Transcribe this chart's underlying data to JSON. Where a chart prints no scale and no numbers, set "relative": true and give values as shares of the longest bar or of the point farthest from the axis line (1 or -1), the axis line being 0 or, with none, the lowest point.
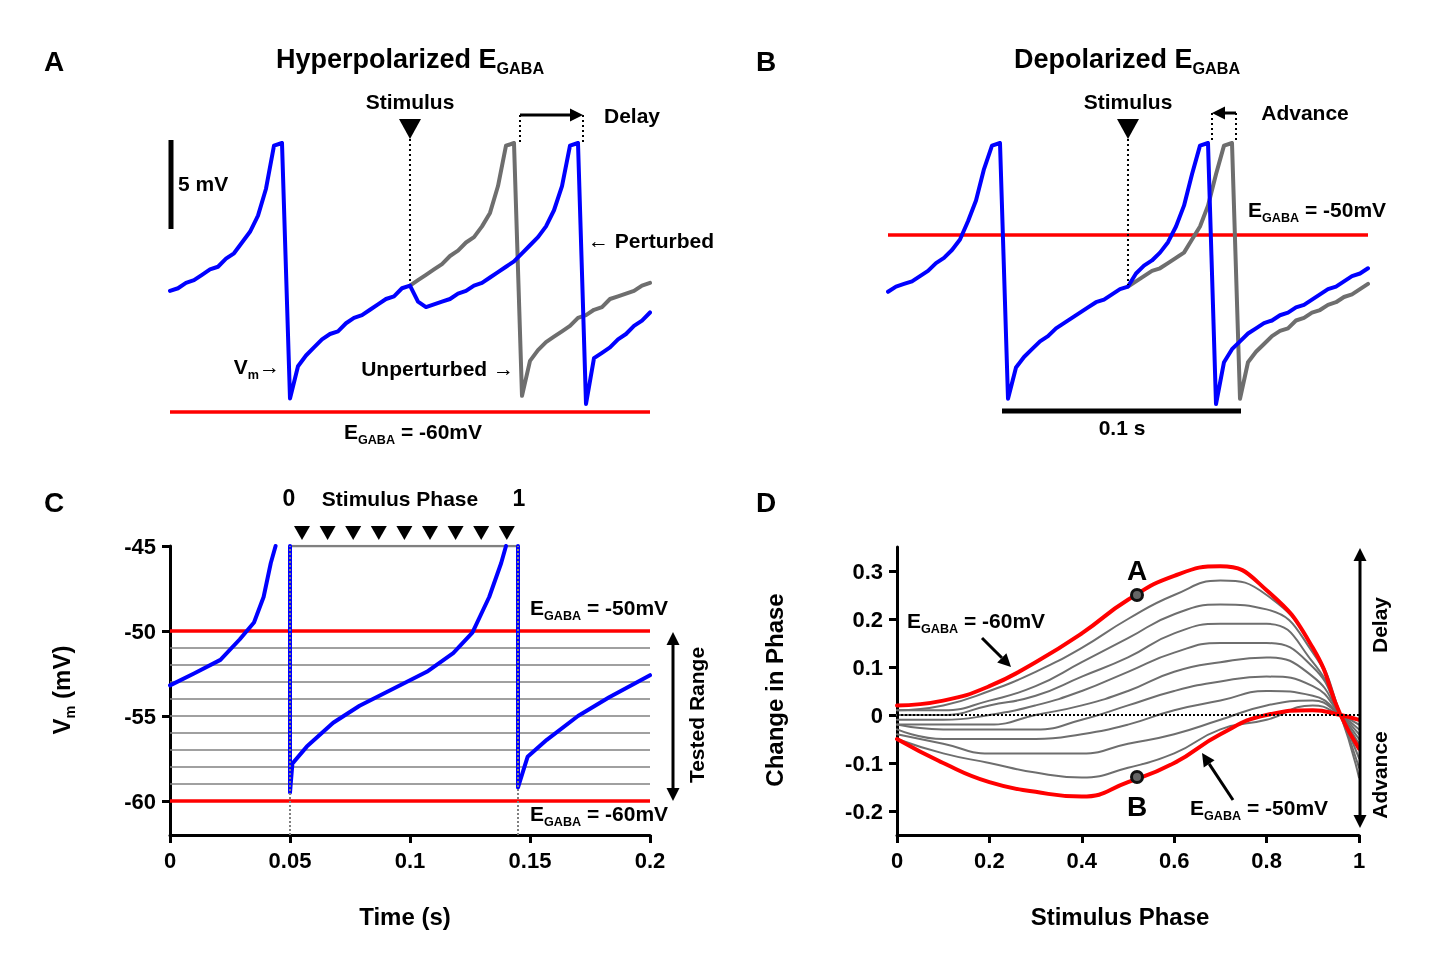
{
  "chart_data": [
    {
      "type": "line",
      "title": "Hyperpolarized E$_{GABA}$",
      "relative": true,
      "categories": [
        null,
        null,
        null,
        null,
        null,
        null,
        null,
        null,
        null,
        null,
        null,
        null,
        null,
        null,
        null,
        null,
        null,
        null,
        null,
        null,
        null,
        null,
        null,
        null,
        null,
        null,
        null,
        null,
        null,
        null,
        null,
        null,
        null,
        null,
        null,
        null,
        null,
        null,
        null,
        null,
        null,
        null,
        null,
        null,
        null,
        null,
        null,
        null,
        null,
        null,
        null,
        null,
        null,
        null,
        null,
        null,
        null,
        null,
        null,
        null,
        null
      ],
      "series": [
        {
          "color": "#6e6e6e",
          "values": [
            null,
            null,
            null,
            null,
            null,
            null,
            null,
            null,
            null,
            null,
            null,
            null,
            null,
            null,
            null,
            null,
            null,
            null,
            null,
            null,
            null,
            null,
            null,
            null,
            null,
            null,
            null,
            null,
            null,
            null,
            0.47,
            0.49,
            0.51,
            0.53,
            0.55,
            0.58,
            0.6,
            0.63,
            0.65,
            0.69,
            0.74,
            0.84,
            0.99,
            1,
            0.06,
            0.19,
            0.23,
            0.26,
            0.28,
            0.3,
            0.32,
            0.35,
            0.36,
            0.38,
            0.39,
            0.42,
            0.43,
            0.44,
            0.45,
            0.47,
            0.48
          ]
        },
        {
          "color": "#0000ff",
          "values": [
            0.45,
            0.46,
            0.48,
            0.49,
            0.51,
            0.53,
            0.54,
            0.57,
            0.59,
            0.63,
            0.67,
            0.73,
            0.83,
            0.99,
            1,
            0.05,
            0.17,
            0.21,
            0.24,
            0.27,
            0.29,
            0.3,
            0.33,
            0.35,
            0.36,
            0.38,
            0.4,
            0.42,
            0.43,
            0.46,
            0.47,
            0.41,
            0.39,
            0.4,
            0.41,
            0.42,
            0.44,
            0.45,
            0.47,
            0.48,
            0.5,
            0.52,
            0.54,
            0.56,
            0.59,
            0.62,
            0.65,
            0.69,
            0.75,
            0.84,
            0.99,
            1,
            0.03,
            0.2,
            0.22,
            0.24,
            0.27,
            0.29,
            0.32,
            0.34,
            0.37
          ]
        }
      ],
      "ref_lines": [
        {
          "axis": "y",
          "value": 0,
          "color": "#ff0000"
        }
      ],
      "annotations": [
        "A",
        "Stimulus",
        "Delay",
        "5 mV",
        "← Perturbed",
        "V$_{m}$→",
        "Unperturbed →",
        "E$_{GABA}$ = -60mV"
      ]
    },
    {
      "type": "line",
      "title": "Depolarized E$_{GABA}$",
      "relative": true,
      "categories": [
        null,
        null,
        null,
        null,
        null,
        null,
        null,
        null,
        null,
        null,
        null,
        null,
        null,
        null,
        null,
        null,
        null,
        null,
        null,
        null,
        null,
        null,
        null,
        null,
        null,
        null,
        null,
        null,
        null,
        null,
        null,
        null,
        null,
        null,
        null,
        null,
        null,
        null,
        null,
        null,
        null,
        null,
        null,
        null,
        null,
        null,
        null,
        null,
        null,
        null,
        null,
        null,
        null,
        null,
        null,
        null,
        null,
        null,
        null,
        null,
        null
      ],
      "series": [
        {
          "color": "#6e6e6e",
          "values": [
            null,
            null,
            null,
            null,
            null,
            null,
            null,
            null,
            null,
            null,
            null,
            null,
            null,
            null,
            null,
            null,
            null,
            null,
            null,
            null,
            null,
            null,
            null,
            null,
            null,
            null,
            null,
            null,
            null,
            null,
            0.45,
            0.47,
            0.49,
            0.51,
            0.52,
            0.54,
            0.56,
            0.58,
            0.63,
            0.68,
            0.76,
            0.88,
            0.99,
            1,
            0.02,
            0.16,
            0.2,
            0.23,
            0.26,
            0.28,
            0.29,
            0.32,
            0.33,
            0.35,
            0.36,
            0.38,
            0.39,
            0.41,
            0.42,
            0.44,
            0.46
          ]
        },
        {
          "color": "#0000ff",
          "values": [
            0.43,
            0.45,
            0.46,
            0.47,
            0.49,
            0.51,
            0.54,
            0.56,
            0.59,
            0.63,
            0.7,
            0.78,
            0.9,
            0.99,
            1,
            0.02,
            0.14,
            0.18,
            0.21,
            0.24,
            0.26,
            0.29,
            0.31,
            0.33,
            0.35,
            0.37,
            0.39,
            0.4,
            0.42,
            0.44,
            0.45,
            0.5,
            0.53,
            0.55,
            0.58,
            0.62,
            0.68,
            0.76,
            0.88,
            0.99,
            1,
            0,
            0.16,
            0.21,
            0.24,
            0.27,
            0.29,
            0.31,
            0.32,
            0.34,
            0.35,
            0.37,
            0.38,
            0.4,
            0.42,
            0.44,
            0.45,
            0.47,
            0.49,
            0.5,
            0.52
          ]
        }
      ],
      "ref_lines": [
        {
          "axis": "y",
          "value": 0.65,
          "color": "#ff0000"
        }
      ],
      "annotations": [
        "B",
        "Stimulus",
        "Advance",
        "0.1 s",
        "E$_{GABA}$ = -50mV"
      ]
    },
    {
      "type": "line",
      "xlabel": "Time (s)",
      "ylabel": "V$_{m}$ (mV)",
      "xlim": [
        0,
        0.2
      ],
      "xticks": [
        0,
        0.05,
        0.1,
        0.15,
        0.2
      ],
      "ylim": [
        -62,
        -45
      ],
      "yticks": [
        -60,
        -55,
        -50,
        -45
      ],
      "series": [
        {
          "color": "#808080",
          "x": [
            0.05,
            0.145
          ],
          "values": [
            -45,
            -45
          ]
        },
        {
          "color": "#0000ff",
          "x": [
            0,
            0.01,
            0.021,
            0.029,
            0.035,
            0.039,
            0.042,
            0.044,
            0.047,
            0.05,
            0.05,
            0.051,
            0.057,
            0.068,
            0.079,
            0.093,
            0.107,
            0.118,
            0.126,
            0.133,
            0.138,
            0.14,
            0.142,
            0.145,
            0.145,
            0.149,
            0.157,
            0.17,
            0.183,
            0.2
          ],
          "values": [
            -53.2,
            -52.5,
            -51.7,
            -50.5,
            -49.5,
            -48,
            -46,
            -45,
            null,
            -45,
            -59.5,
            -57.8,
            -56.8,
            -55.4,
            -54.4,
            -53.4,
            -52.4,
            -51.3,
            -50.1,
            -48,
            -46,
            -45,
            null,
            -45,
            -59.2,
            -57.4,
            -56.4,
            -55,
            -53.9,
            -52.6
          ]
        }
      ],
      "ref_lines": [
        {
          "axis": "y",
          "value": -50,
          "label": "E$_{GABA}$ = -50mV",
          "color": "#ff0000"
        },
        {
          "axis": "y",
          "value": -51,
          "color": "#808080"
        },
        {
          "axis": "y",
          "value": -52,
          "color": "#808080"
        },
        {
          "axis": "y",
          "value": -53,
          "color": "#808080"
        },
        {
          "axis": "y",
          "value": -54,
          "color": "#808080"
        },
        {
          "axis": "y",
          "value": -55,
          "color": "#808080"
        },
        {
          "axis": "y",
          "value": -56,
          "color": "#808080"
        },
        {
          "axis": "y",
          "value": -57,
          "color": "#808080"
        },
        {
          "axis": "y",
          "value": -58,
          "color": "#808080"
        },
        {
          "axis": "y",
          "value": -59,
          "color": "#808080"
        },
        {
          "axis": "y",
          "value": -60,
          "label": "E$_{GABA}$ = -60mV",
          "color": "#ff0000"
        },
        {
          "axis": "x",
          "value": 0.05,
          "color": "#808080",
          "line_style": "dotted"
        },
        {
          "axis": "x",
          "value": 0.145,
          "color": "#808080",
          "line_style": "dotted"
        }
      ],
      "annotations": [
        "C",
        "0",
        "Stimulus Phase",
        "1",
        "Tested Range"
      ]
    },
    {
      "type": "line",
      "xlabel": "Stimulus Phase",
      "ylabel": "Change in Phase",
      "xlim": [
        0,
        1
      ],
      "xticks": [
        0,
        0.2,
        0.4,
        0.6,
        0.8,
        1
      ],
      "ylim": [
        -0.25,
        0.35
      ],
      "yticks": [
        -0.2,
        -0.1,
        0,
        0.1,
        0.2,
        0.3
      ],
      "x": [
        0,
        0.1,
        0.2,
        0.3,
        0.4,
        0.5,
        0.6,
        0.7,
        0.8,
        0.9,
        0.96,
        1
      ],
      "series": [
        {
          "name": "E$_{GABA}$ = -60mV",
          "color": "#ff0000",
          "values": [
            0.02,
            0.03,
            0.06,
            0.11,
            0.17,
            0.24,
            0.29,
            0.31,
            0.26,
            0.14,
            0,
            -0.07
          ]
        },
        {
          "color": "#6e6e6e",
          "values": [
            0.01,
            0.02,
            0.05,
            0.09,
            0.14,
            0.2,
            0.25,
            0.28,
            0.25,
            0.14,
            0,
            -0.13
          ]
        },
        {
          "color": "#6e6e6e",
          "values": [
            0.01,
            0.01,
            0.03,
            0.06,
            0.11,
            0.16,
            0.21,
            0.23,
            0.22,
            0.13,
            0,
            -0.11
          ]
        },
        {
          "color": "#6e6e6e",
          "values": [
            0,
            0,
            0.02,
            0.04,
            0.08,
            0.12,
            0.17,
            0.19,
            0.19,
            0.11,
            0,
            -0.09
          ]
        },
        {
          "color": "#6e6e6e",
          "values": [
            -0.01,
            -0.01,
            0,
            0.02,
            0.05,
            0.09,
            0.13,
            0.15,
            0.15,
            0.1,
            0,
            -0.07
          ]
        },
        {
          "color": "#6e6e6e",
          "values": [
            -0.02,
            -0.02,
            -0.02,
            0,
            0.02,
            0.05,
            0.09,
            0.11,
            0.12,
            0.08,
            0,
            -0.06
          ]
        },
        {
          "color": "#6e6e6e",
          "values": [
            -0.02,
            -0.03,
            -0.03,
            -0.03,
            -0.01,
            0.02,
            0.05,
            0.07,
            0.08,
            0.06,
            0,
            -0.05
          ]
        },
        {
          "color": "#6e6e6e",
          "values": [
            -0.03,
            -0.05,
            -0.05,
            -0.05,
            -0.04,
            -0.02,
            0.01,
            0.03,
            0.05,
            0.04,
            0,
            -0.04
          ]
        },
        {
          "color": "#6e6e6e",
          "values": [
            -0.04,
            -0.06,
            -0.08,
            -0.08,
            -0.08,
            -0.06,
            -0.04,
            -0.01,
            0.02,
            0.03,
            0,
            -0.03
          ]
        },
        {
          "color": "#6e6e6e",
          "values": [
            -0.05,
            -0.08,
            -0.1,
            -0.12,
            -0.13,
            -0.11,
            -0.08,
            -0.03,
            -0.01,
            0.02,
            0,
            -0.02
          ]
        },
        {
          "name": "E$_{GABA}$ = -50mV",
          "color": "#ff0000",
          "values": [
            -0.05,
            -0.1,
            -0.14,
            -0.16,
            -0.17,
            -0.14,
            -0.1,
            -0.04,
            0,
            0.01,
            0,
            -0.01
          ]
        }
      ],
      "ref_lines": [
        {
          "axis": "y",
          "value": 0,
          "color": "#000000",
          "line_style": "dotted"
        }
      ],
      "annotations": [
        "D",
        {
          "text": "A",
          "x": 0.52,
          "y": 0.25
        },
        {
          "text": "B",
          "x": 0.52,
          "y": -0.13
        },
        "Delay",
        "Advance"
      ]
    }
  ]
}
